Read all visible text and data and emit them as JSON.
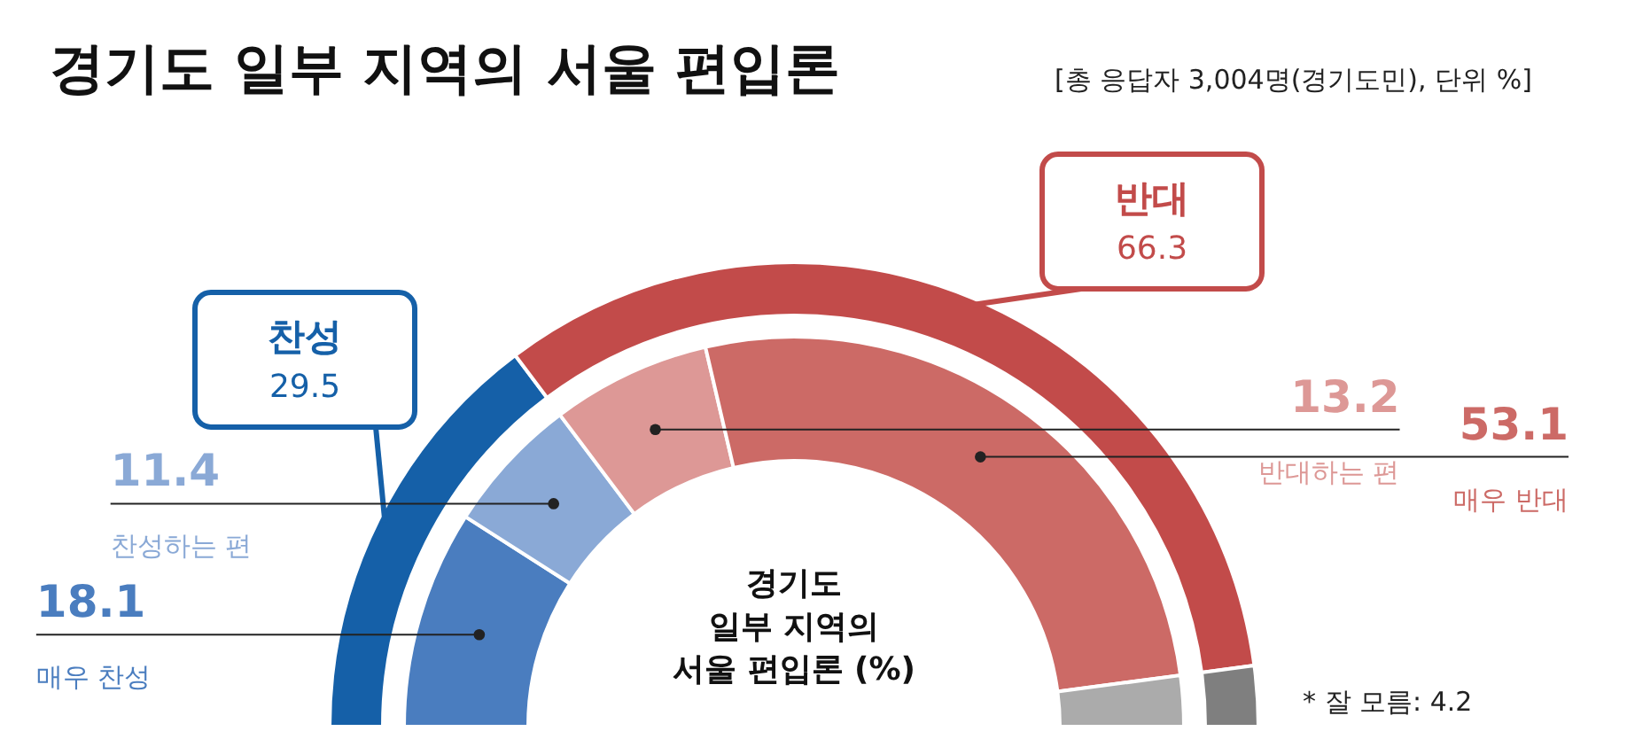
{
  "chart_data": [
    {
      "type": "donut",
      "title": "경기도 일부 지역의 서울 편입론",
      "subtitle": "[총 응답자 3,004명(경기도민), 단위 %]",
      "categories": [
        "찬성",
        "반대",
        null
      ],
      "values": [
        29.5,
        66.3,
        4.2
      ],
      "colors": [
        "#1560a8",
        "#c24b4a",
        "#7f7f7f"
      ],
      "value_labels": [
        "29.5",
        "66.3",
        null
      ]
    },
    {
      "type": "donut",
      "categories": [
        "매우 찬성",
        "찬성하는 편",
        "반대하는 편",
        "매우 반대",
        null
      ],
      "values": [
        18.1,
        11.4,
        13.2,
        53.1,
        4.2
      ],
      "colors": [
        "#4a7dbf",
        "#8aa9d6",
        "#dd9896",
        "#cc6a66",
        "#ababab"
      ],
      "value_labels": [
        "18.1",
        "11.4",
        "13.2",
        "53.1",
        null
      ],
      "annotations": [
        "경기도\n일부 지역의\n서울 편입론 (%)",
        "* 잘 모름: 4.2"
      ]
    }
  ]
}
